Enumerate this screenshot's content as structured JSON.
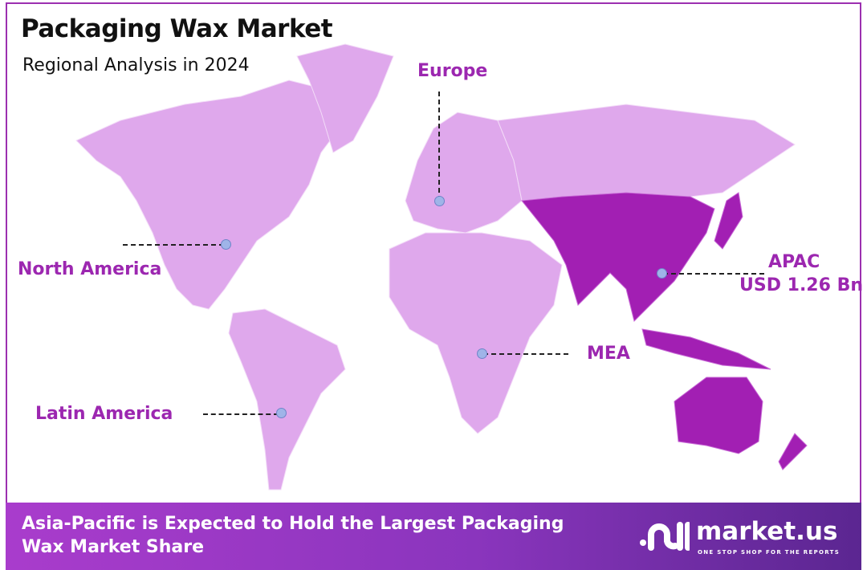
{
  "title": "Packaging Wax Market",
  "subtitle": "Regional Analysis in 2024",
  "colors": {
    "region": "#dfa8ec",
    "highlight": "#a21fb3",
    "label": "#9c27b0",
    "border": "#9c2fb0"
  },
  "highlighted_region": "APAC",
  "regions": {
    "north_america": {
      "label": "North America"
    },
    "europe": {
      "label": "Europe"
    },
    "apac": {
      "label": "APAC",
      "value": "USD 1.26 Bn"
    },
    "mea": {
      "label": "MEA"
    },
    "latin_america": {
      "label": "Latin America"
    }
  },
  "banner": {
    "text": "Asia-Pacific is Expected to Hold the Largest Packaging Wax Market Share"
  },
  "logo": {
    "name": "market.us",
    "tagline": "ONE STOP SHOP FOR THE REPORTS"
  }
}
